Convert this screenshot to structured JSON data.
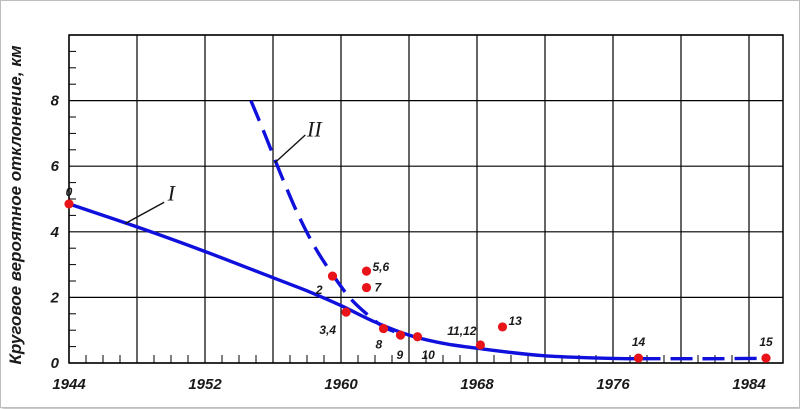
{
  "chart_data": {
    "type": "line",
    "ylabel": "Круговое вероятное отклонение, км",
    "xlabel": "",
    "xlim": [
      1944,
      1986
    ],
    "ylim": [
      0,
      10
    ],
    "x_ticks": [
      "1944",
      "1952",
      "1960",
      "1968",
      "1976",
      "1984"
    ],
    "y_ticks": [
      "0",
      "2",
      "4",
      "6",
      "8"
    ],
    "grid": true,
    "colors": {
      "curve": "#1010dd",
      "point": "#e8141a",
      "grid": "#000000"
    },
    "series": [
      {
        "name": "I",
        "style": "solid",
        "x": [
          1944,
          1948,
          1952,
          1956,
          1958,
          1960,
          1962,
          1964,
          1966,
          1968,
          1970,
          1972,
          1974,
          1976,
          1977.5
        ],
        "y": [
          4.85,
          4.15,
          3.4,
          2.6,
          2.2,
          1.75,
          1.25,
          0.85,
          0.6,
          0.45,
          0.32,
          0.22,
          0.17,
          0.14,
          0.13
        ]
      },
      {
        "name": "II",
        "style": "dashed",
        "x": [
          1954.7,
          1955.5,
          1956.5,
          1957.5,
          1958.5,
          1959.5,
          1960.5,
          1961.5,
          1962.5,
          1963.5
        ],
        "y": [
          8.0,
          7.0,
          5.7,
          4.5,
          3.5,
          2.7,
          2.0,
          1.5,
          1.1,
          0.9
        ]
      },
      {
        "name": "",
        "style": "dashed",
        "x": [
          1977.5,
          1980,
          1982,
          1984,
          1984.8
        ],
        "y": [
          0.13,
          0.13,
          0.13,
          0.14,
          0.14
        ]
      }
    ],
    "points": [
      {
        "label": "0",
        "x": 1944,
        "y": 4.85
      },
      {
        "label": "2",
        "x": 1959.5,
        "y": 2.65
      },
      {
        "label": "5,6",
        "x": 1961.5,
        "y": 2.8
      },
      {
        "label": "7",
        "x": 1961.5,
        "y": 2.3
      },
      {
        "label": "3,4",
        "x": 1960.3,
        "y": 1.55
      },
      {
        "label": "8",
        "x": 1962.5,
        "y": 1.05
      },
      {
        "label": "9",
        "x": 1963.5,
        "y": 0.85
      },
      {
        "label": "10",
        "x": 1964.5,
        "y": 0.8
      },
      {
        "label": "11,12",
        "x": 1968.2,
        "y": 0.55
      },
      {
        "label": "13",
        "x": 1969.5,
        "y": 1.1
      },
      {
        "label": "14",
        "x": 1977.5,
        "y": 0.15
      },
      {
        "label": "15",
        "x": 1985,
        "y": 0.15
      }
    ]
  }
}
